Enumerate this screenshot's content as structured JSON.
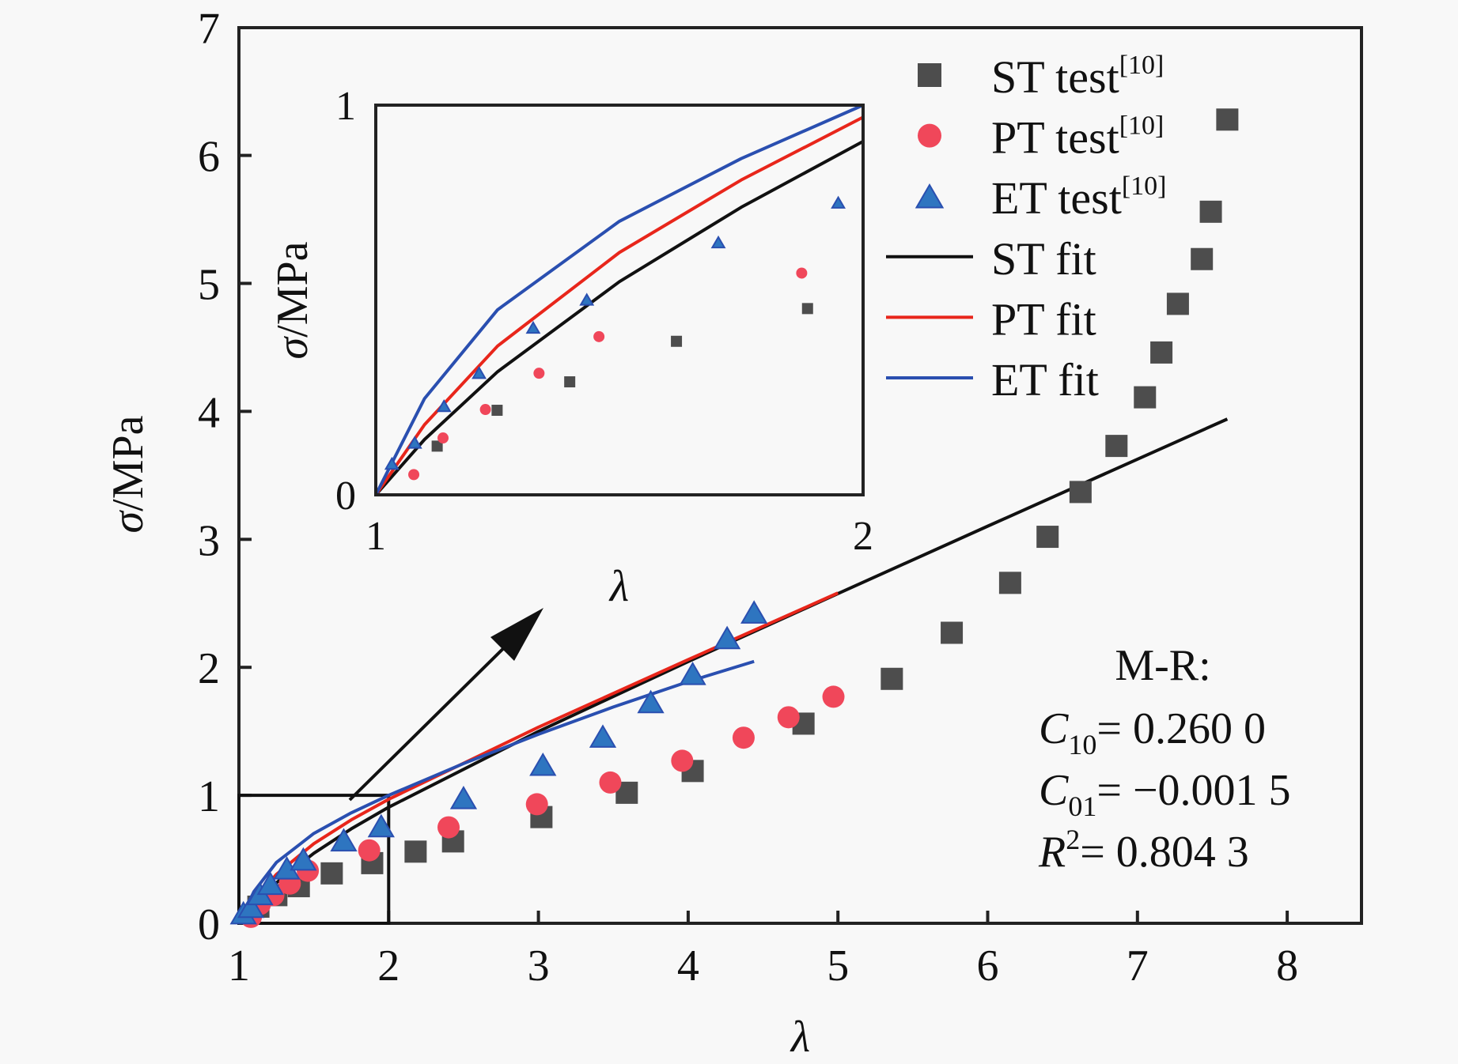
{
  "chart_data": {
    "type": "scatter",
    "title": "",
    "xlabel": "λ",
    "ylabel": "σ/MPa",
    "xlim": [
      1,
      8.5
    ],
    "ylim": [
      0,
      7
    ],
    "xticks": [
      1,
      2,
      3,
      4,
      5,
      6,
      7,
      8
    ],
    "yticks": [
      0,
      1,
      2,
      3,
      4,
      5,
      6,
      7
    ],
    "grid": false,
    "legend_position": "top-right",
    "series": [
      {
        "name": "ST test",
        "ref": "[10]",
        "kind": "marker",
        "marker": "square",
        "color": "#4d4d4d",
        "x": [
          1.13,
          1.25,
          1.4,
          1.62,
          1.89,
          2.18,
          2.43,
          3.02,
          3.59,
          4.03,
          4.77,
          5.36,
          5.76,
          6.15,
          6.4,
          6.62,
          6.86,
          7.05,
          7.16,
          7.27,
          7.43,
          7.49,
          7.6
        ],
        "y": [
          0.13,
          0.22,
          0.29,
          0.39,
          0.47,
          0.56,
          0.64,
          0.83,
          1.02,
          1.19,
          1.56,
          1.91,
          2.27,
          2.66,
          3.02,
          3.37,
          3.73,
          4.11,
          4.46,
          4.84,
          5.19,
          5.56,
          6.28
        ]
      },
      {
        "name": "PT test",
        "ref": "[10]",
        "kind": "marker",
        "marker": "circle",
        "color": "#f0475a",
        "x": [
          1.08,
          1.14,
          1.23,
          1.34,
          1.46,
          1.87,
          2.4,
          2.99,
          3.48,
          3.96,
          4.37,
          4.67,
          4.97
        ],
        "y": [
          0.05,
          0.15,
          0.22,
          0.31,
          0.41,
          0.57,
          0.75,
          0.93,
          1.1,
          1.27,
          1.45,
          1.61,
          1.77
        ]
      },
      {
        "name": "ET test",
        "ref": "[10]",
        "kind": "marker",
        "marker": "triangle",
        "color": "#2e75c0",
        "x": [
          1.03,
          1.08,
          1.14,
          1.21,
          1.32,
          1.43,
          1.7,
          1.95,
          2.5,
          3.03,
          3.43,
          3.75,
          4.03,
          4.26,
          4.44
        ],
        "y": [
          0.08,
          0.13,
          0.23,
          0.31,
          0.43,
          0.5,
          0.65,
          0.76,
          0.98,
          1.24,
          1.46,
          1.73,
          1.95,
          2.23,
          2.43
        ]
      },
      {
        "name": "ST fit",
        "kind": "line",
        "color": "#111111",
        "x": [
          1.0,
          1.1,
          1.25,
          1.5,
          1.75,
          2.0,
          3.0,
          4.0,
          5.0,
          6.0,
          7.0,
          7.6
        ],
        "y": [
          0,
          0.142,
          0.316,
          0.547,
          0.738,
          0.907,
          1.499,
          2.045,
          2.576,
          3.103,
          3.626,
          3.94
        ]
      },
      {
        "name": "PT fit",
        "kind": "line",
        "color": "#e8261b",
        "x": [
          1.0,
          1.1,
          1.25,
          1.5,
          1.75,
          2.0,
          3.0,
          4.0,
          5.0
        ],
        "y": [
          0,
          0.18,
          0.382,
          0.622,
          0.808,
          0.969,
          1.532,
          2.06,
          2.581
        ]
      },
      {
        "name": "ET fit",
        "kind": "line",
        "color": "#2a4fb0",
        "x": [
          1.0,
          1.1,
          1.25,
          1.5,
          1.75,
          2.0,
          2.5,
          3.0,
          3.5,
          4.0,
          4.44
        ],
        "y": [
          0,
          0.247,
          0.475,
          0.702,
          0.863,
          1.0,
          1.248,
          1.477,
          1.69,
          1.888,
          2.046
        ]
      }
    ],
    "inset": {
      "xlabel": "λ",
      "ylabel": "σ/MPa",
      "xlim": [
        1,
        2
      ],
      "ylim": [
        0,
        1
      ],
      "xticks": [
        1,
        2
      ],
      "yticks": [
        0,
        1
      ],
      "zoom_region": {
        "x": [
          1,
          2
        ],
        "y": [
          0,
          1
        ]
      },
      "series": [
        {
          "name": "ST test",
          "marker": "square",
          "color": "#4d4d4d",
          "x": [
            1.126,
            1.249,
            1.398,
            1.617,
            1.886
          ],
          "y": [
            0.125,
            0.217,
            0.29,
            0.394,
            0.478
          ]
        },
        {
          "name": "PT test",
          "marker": "circle",
          "color": "#f0475a",
          "x": [
            1.078,
            1.138,
            1.225,
            1.335,
            1.458,
            1.874
          ],
          "y": [
            0.052,
            0.146,
            0.219,
            0.312,
            0.406,
            0.569
          ]
        },
        {
          "name": "ET test",
          "marker": "triangle",
          "color": "#2e75c0",
          "x": [
            1.033,
            1.08,
            1.14,
            1.212,
            1.323,
            1.433,
            1.703,
            1.949
          ],
          "y": [
            0.08,
            0.134,
            0.228,
            0.313,
            0.429,
            0.501,
            0.648,
            0.75
          ]
        }
      ]
    },
    "annotation": {
      "model": "M-R:",
      "lines": [
        {
          "symbol": "C",
          "sub": "10",
          "sup": "",
          "value": "= 0.260 0"
        },
        {
          "symbol": "C",
          "sub": "01",
          "sup": "",
          "value": "= −0.001 5"
        },
        {
          "symbol": "R",
          "sub": "",
          "sup": "2",
          "value": "= 0.804 3"
        }
      ]
    }
  }
}
